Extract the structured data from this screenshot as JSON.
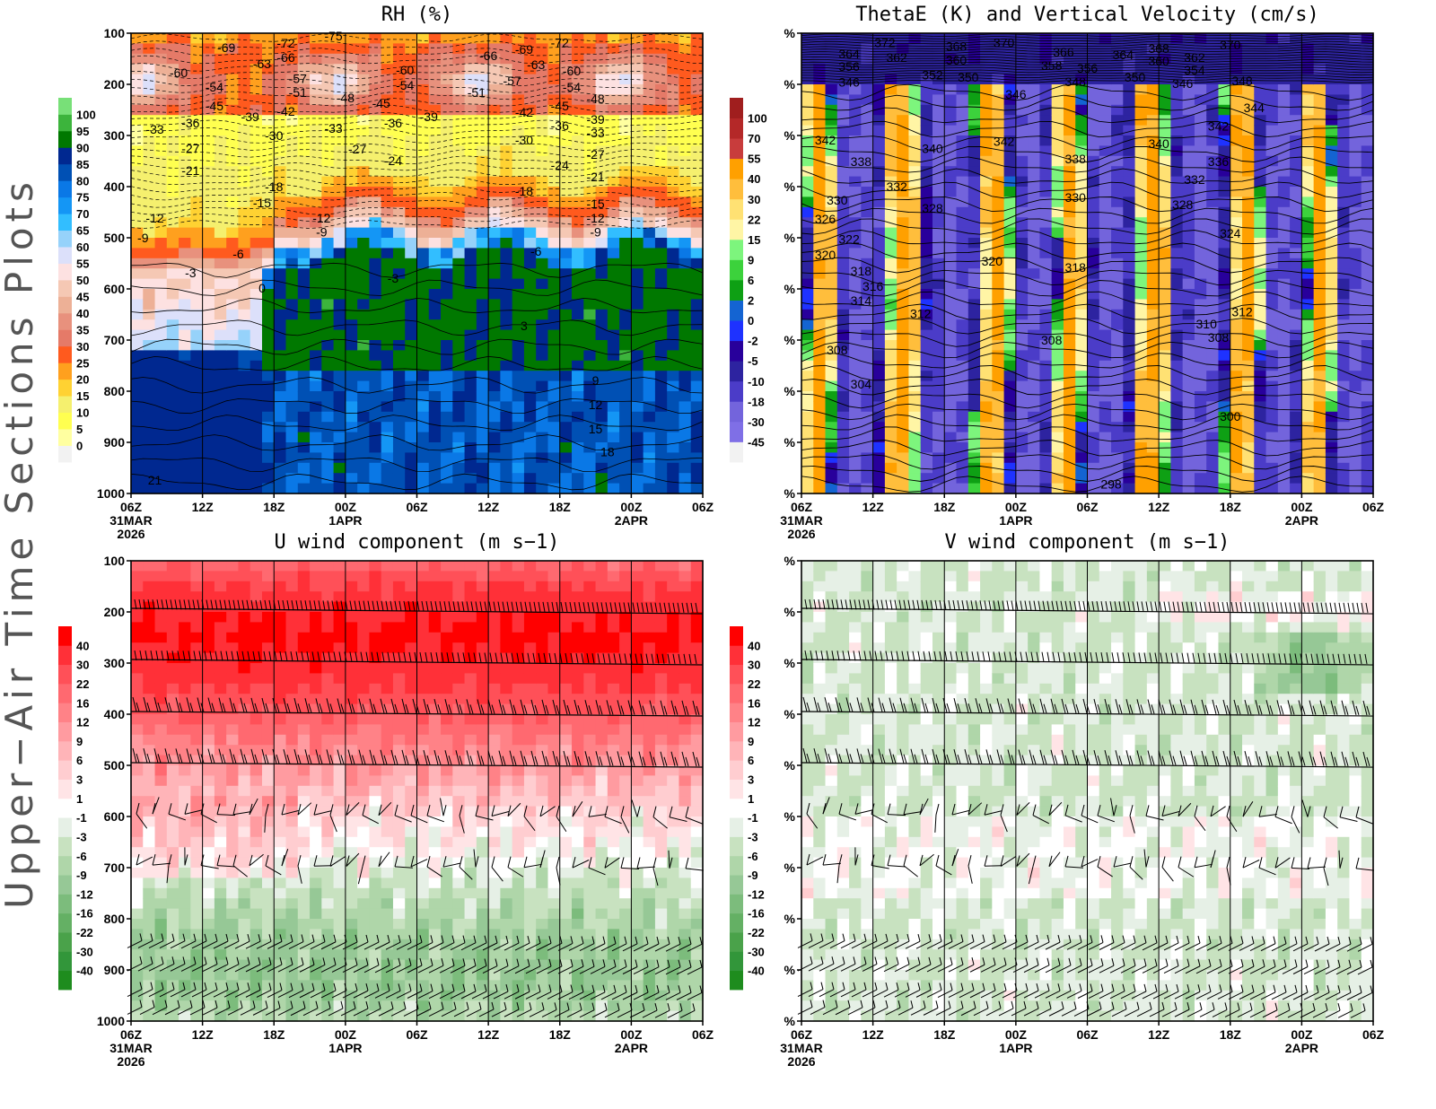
{
  "side_title": "Upper−Air Time Sections Plots",
  "chart_data": [
    {
      "id": "rh",
      "type": "heatmap",
      "title": "RH (%)",
      "xlabel": "",
      "ylabel": "",
      "ylim": [
        1000,
        100
      ],
      "xlim": [
        "2026-03-31T06:00Z",
        "2026-04-02T06:00Z"
      ],
      "x_ticks": [
        "06Z",
        "12Z",
        "18Z",
        "00Z",
        "06Z",
        "12Z",
        "18Z",
        "00Z",
        "06Z"
      ],
      "x_date_labels": [
        {
          "tick": 0,
          "lines": [
            "31MAR",
            "2026"
          ]
        },
        {
          "tick": 3,
          "lines": [
            "1APR"
          ]
        },
        {
          "tick": 7,
          "lines": [
            "2APR"
          ]
        }
      ],
      "y_tick_labels": [
        "100",
        "200",
        "300",
        "400",
        "500",
        "600",
        "700",
        "800",
        "900",
        "1000"
      ],
      "colorbar": {
        "levels": [
          "0",
          "5",
          "10",
          "15",
          "20",
          "25",
          "30",
          "35",
          "40",
          "45",
          "50",
          "55",
          "60",
          "65",
          "70",
          "75",
          "80",
          "85",
          "90",
          "95",
          "100"
        ],
        "colors": [
          "#f2f2f2",
          "#ffffa0",
          "#ffff50",
          "#f5f06e",
          "#ffd232",
          "#ffa01e",
          "#ff5a1e",
          "#e57a68",
          "#e8917d",
          "#edb096",
          "#f5c8b4",
          "#fde1e1",
          "#dce0fa",
          "#96d2fa",
          "#32beff",
          "#1496f5",
          "#0a78e6",
          "#0050b4",
          "#002890",
          "#007800",
          "#3cb43c",
          "#78e078"
        ]
      },
      "contour_labels": [
        {
          "v": "-69",
          "t": "2026-03-31T14:00Z",
          "p": 128
        },
        {
          "v": "-72",
          "t": "2026-03-31T19:00Z",
          "p": 119
        },
        {
          "v": "-75",
          "t": "2026-03-31T23:00Z",
          "p": 105
        },
        {
          "v": "-63",
          "t": "2026-03-31T17:00Z",
          "p": 160
        },
        {
          "v": "-66",
          "t": "2026-03-31T19:00Z",
          "p": 147
        },
        {
          "v": "-60",
          "t": "2026-03-31T10:00Z",
          "p": 177
        },
        {
          "v": "-54",
          "t": "2026-03-31T13:00Z",
          "p": 205
        },
        {
          "v": "-57",
          "t": "2026-03-31T20:00Z",
          "p": 189
        },
        {
          "v": "-51",
          "t": "2026-03-31T20:00Z",
          "p": 216
        },
        {
          "v": "-48",
          "t": "2026-04-01T00:00Z",
          "p": 226
        },
        {
          "v": "-45",
          "t": "2026-03-31T13:00Z",
          "p": 242
        },
        {
          "v": "-45",
          "t": "2026-04-01T03:00Z",
          "p": 237
        },
        {
          "v": "-42",
          "t": "2026-03-31T19:00Z",
          "p": 253
        },
        {
          "v": "-39",
          "t": "2026-03-31T16:00Z",
          "p": 263
        },
        {
          "v": "-36",
          "t": "2026-03-31T11:00Z",
          "p": 275
        },
        {
          "v": "-33",
          "t": "2026-03-31T08:00Z",
          "p": 288
        },
        {
          "v": "-33",
          "t": "2026-03-31T23:00Z",
          "p": 286
        },
        {
          "v": "-30",
          "t": "2026-03-31T18:00Z",
          "p": 300
        },
        {
          "v": "-27",
          "t": "2026-03-31T11:00Z",
          "p": 325
        },
        {
          "v": "-27",
          "t": "2026-04-01T01:00Z",
          "p": 326
        },
        {
          "v": "-24",
          "t": "2026-04-01T04:00Z",
          "p": 349
        },
        {
          "v": "-21",
          "t": "2026-03-31T11:00Z",
          "p": 368
        },
        {
          "v": "-18",
          "t": "2026-03-31T18:00Z",
          "p": 400
        },
        {
          "v": "-15",
          "t": "2026-03-31T17:00Z",
          "p": 432
        },
        {
          "v": "-12",
          "t": "2026-03-31T08:00Z",
          "p": 461
        },
        {
          "v": "-12",
          "t": "2026-03-31T22:00Z",
          "p": 461
        },
        {
          "v": "-9",
          "t": "2026-03-31T07:00Z",
          "p": 500
        },
        {
          "v": "-9",
          "t": "2026-03-31T22:00Z",
          "p": 489
        },
        {
          "v": "-6",
          "t": "2026-03-31T15:00Z",
          "p": 532
        },
        {
          "v": "-3",
          "t": "2026-03-31T11:00Z",
          "p": 568
        },
        {
          "v": "0",
          "t": "2026-03-31T17:00Z",
          "p": 598
        },
        {
          "v": "-60",
          "t": "2026-04-01T05:00Z",
          "p": 172
        },
        {
          "v": "-54",
          "t": "2026-04-01T05:00Z",
          "p": 202
        },
        {
          "v": "-36",
          "t": "2026-04-01T04:00Z",
          "p": 275
        },
        {
          "v": "-39",
          "t": "2026-04-01T07:00Z",
          "p": 263
        },
        {
          "v": "-66",
          "t": "2026-04-01T12:00Z",
          "p": 144
        },
        {
          "v": "-51",
          "t": "2026-04-01T11:00Z",
          "p": 216
        },
        {
          "v": "-57",
          "t": "2026-04-01T14:00Z",
          "p": 193
        },
        {
          "v": "-69",
          "t": "2026-04-01T15:00Z",
          "p": 132
        },
        {
          "v": "-72",
          "t": "2026-04-01T18:00Z",
          "p": 118
        },
        {
          "v": "-63",
          "t": "2026-04-01T16:00Z",
          "p": 161
        },
        {
          "v": "-60",
          "t": "2026-04-01T19:00Z",
          "p": 174
        },
        {
          "v": "-54",
          "t": "2026-04-01T19:00Z",
          "p": 205
        },
        {
          "v": "-48",
          "t": "2026-04-01T21:00Z",
          "p": 228
        },
        {
          "v": "-45",
          "t": "2026-04-01T18:00Z",
          "p": 242
        },
        {
          "v": "-42",
          "t": "2026-04-01T15:00Z",
          "p": 254
        },
        {
          "v": "-39",
          "t": "2026-04-01T21:00Z",
          "p": 268
        },
        {
          "v": "-36",
          "t": "2026-04-01T18:00Z",
          "p": 281
        },
        {
          "v": "-33",
          "t": "2026-04-01T21:00Z",
          "p": 295
        },
        {
          "v": "-30",
          "t": "2026-04-01T15:00Z",
          "p": 309
        },
        {
          "v": "-27",
          "t": "2026-04-01T21:00Z",
          "p": 337
        },
        {
          "v": "-24",
          "t": "2026-04-01T18:00Z",
          "p": 358
        },
        {
          "v": "-21",
          "t": "2026-04-01T21:00Z",
          "p": 381
        },
        {
          "v": "-18",
          "t": "2026-04-01T15:00Z",
          "p": 409
        },
        {
          "v": "-15",
          "t": "2026-04-01T21:00Z",
          "p": 433
        },
        {
          "v": "-12",
          "t": "2026-04-01T21:00Z",
          "p": 461
        },
        {
          "v": "-9",
          "t": "2026-04-01T21:00Z",
          "p": 489
        },
        {
          "v": "-6",
          "t": "2026-04-01T16:00Z",
          "p": 526
        },
        {
          "v": "-3",
          "t": "2026-04-01T04:00Z",
          "p": 579
        },
        {
          "v": "3",
          "t": "2026-04-01T15:00Z",
          "p": 672
        },
        {
          "v": "9",
          "t": "2026-04-01T21:00Z",
          "p": 779
        },
        {
          "v": "12",
          "t": "2026-04-01T21:00Z",
          "p": 826
        },
        {
          "v": "15",
          "t": "2026-04-01T21:00Z",
          "p": 874
        },
        {
          "v": "18",
          "t": "2026-04-01T22:00Z",
          "p": 918
        },
        {
          "v": "21",
          "t": "2026-03-31T08:00Z",
          "p": 974
        }
      ]
    },
    {
      "id": "thetae",
      "type": "heatmap",
      "title": "ThetaE (K) and Vertical Velocity (cm/s)",
      "xlabel": "",
      "ylabel": "",
      "ylim": [
        1000,
        100
      ],
      "xlim": [
        "2026-03-31T06:00Z",
        "2026-04-02T06:00Z"
      ],
      "x_ticks": [
        "06Z",
        "12Z",
        "18Z",
        "00Z",
        "06Z",
        "12Z",
        "18Z",
        "00Z",
        "06Z"
      ],
      "x_date_labels": [
        {
          "tick": 0,
          "lines": [
            "31MAR",
            "2026"
          ]
        },
        {
          "tick": 3,
          "lines": [
            "1APR"
          ]
        },
        {
          "tick": 7,
          "lines": [
            "2APR"
          ]
        }
      ],
      "y_tick_labels": [
        "%",
        "%",
        "%",
        "%",
        "%",
        "%",
        "%",
        "%",
        "%",
        "%"
      ],
      "colorbar": {
        "levels": [
          "-45",
          "-30",
          "-18",
          "-10",
          "-5",
          "-2",
          "0",
          "2",
          "6",
          "9",
          "15",
          "22",
          "30",
          "40",
          "55",
          "70",
          "100"
        ],
        "colors": [
          "#f2f2f2",
          "#7f6fe6",
          "#7364dc",
          "#4b3cc8",
          "#2d23a0",
          "#28009b",
          "#1e32ff",
          "#1464d2",
          "#0ea014",
          "#3cd23c",
          "#7df57d",
          "#fff5a5",
          "#ffe173",
          "#ffbe3c",
          "#ffa000",
          "#c83c3c",
          "#b42828",
          "#a01e1e"
        ]
      },
      "contour_labels": [
        {
          "v": "372",
          "t": "2026-03-31T13:00Z",
          "p": 118
        },
        {
          "v": "364",
          "t": "2026-03-31T10:00Z",
          "p": 140
        },
        {
          "v": "356",
          "t": "2026-03-31T10:00Z",
          "p": 165
        },
        {
          "v": "362",
          "t": "2026-03-31T14:00Z",
          "p": 147
        },
        {
          "v": "368",
          "t": "2026-03-31T19:00Z",
          "p": 125
        },
        {
          "v": "370",
          "t": "2026-03-31T23:00Z",
          "p": 118
        },
        {
          "v": "360",
          "t": "2026-03-31T19:00Z",
          "p": 153
        },
        {
          "v": "366",
          "t": "2026-04-01T04:00Z",
          "p": 137
        },
        {
          "v": "358",
          "t": "2026-04-01T03:00Z",
          "p": 163
        },
        {
          "v": "356",
          "t": "2026-04-01T06:00Z",
          "p": 168
        },
        {
          "v": "352",
          "t": "2026-03-31T17:00Z",
          "p": 182
        },
        {
          "v": "350",
          "t": "2026-03-31T20:00Z",
          "p": 186
        },
        {
          "v": "348",
          "t": "2026-04-01T05:00Z",
          "p": 195
        },
        {
          "v": "364",
          "t": "2026-04-01T09:00Z",
          "p": 142
        },
        {
          "v": "368",
          "t": "2026-04-01T12:00Z",
          "p": 130
        },
        {
          "v": "360",
          "t": "2026-04-01T12:00Z",
          "p": 154
        },
        {
          "v": "362",
          "t": "2026-04-01T15:00Z",
          "p": 147
        },
        {
          "v": "370",
          "t": "2026-04-01T18:00Z",
          "p": 123
        },
        {
          "v": "354",
          "t": "2026-04-01T15:00Z",
          "p": 172
        },
        {
          "v": "350",
          "t": "2026-04-01T10:00Z",
          "p": 186
        },
        {
          "v": "346",
          "t": "2026-04-01T14:00Z",
          "p": 198
        },
        {
          "v": "348",
          "t": "2026-04-01T19:00Z",
          "p": 193
        },
        {
          "v": "346",
          "t": "2026-03-31T10:00Z",
          "p": 196
        },
        {
          "v": "346",
          "t": "2026-04-01T00:00Z",
          "p": 219
        },
        {
          "v": "344",
          "t": "2026-04-01T20:00Z",
          "p": 246
        },
        {
          "v": "342",
          "t": "2026-03-31T08:00Z",
          "p": 309
        },
        {
          "v": "342",
          "t": "2026-03-31T23:00Z",
          "p": 311
        },
        {
          "v": "342",
          "t": "2026-04-01T17:00Z",
          "p": 282
        },
        {
          "v": "340",
          "t": "2026-03-31T17:00Z",
          "p": 325
        },
        {
          "v": "340",
          "t": "2026-04-01T12:00Z",
          "p": 316
        },
        {
          "v": "338",
          "t": "2026-03-31T11:00Z",
          "p": 351
        },
        {
          "v": "338",
          "t": "2026-04-01T05:00Z",
          "p": 346
        },
        {
          "v": "336",
          "t": "2026-04-01T17:00Z",
          "p": 351
        },
        {
          "v": "332",
          "t": "2026-03-31T14:00Z",
          "p": 400
        },
        {
          "v": "332",
          "t": "2026-04-01T15:00Z",
          "p": 386
        },
        {
          "v": "330",
          "t": "2026-03-31T09:00Z",
          "p": 426
        },
        {
          "v": "330",
          "t": "2026-04-01T05:00Z",
          "p": 421
        },
        {
          "v": "328",
          "t": "2026-03-31T17:00Z",
          "p": 442
        },
        {
          "v": "328",
          "t": "2026-04-01T14:00Z",
          "p": 435
        },
        {
          "v": "326",
          "t": "2026-03-31T08:00Z",
          "p": 463
        },
        {
          "v": "324",
          "t": "2026-04-01T18:00Z",
          "p": 491
        },
        {
          "v": "322",
          "t": "2026-03-31T10:00Z",
          "p": 503
        },
        {
          "v": "320",
          "t": "2026-03-31T08:00Z",
          "p": 533
        },
        {
          "v": "320",
          "t": "2026-03-31T22:00Z",
          "p": 546
        },
        {
          "v": "318",
          "t": "2026-03-31T11:00Z",
          "p": 565
        },
        {
          "v": "318",
          "t": "2026-04-01T05:00Z",
          "p": 558
        },
        {
          "v": "316",
          "t": "2026-03-31T12:00Z",
          "p": 595
        },
        {
          "v": "314",
          "t": "2026-03-31T11:00Z",
          "p": 623
        },
        {
          "v": "312",
          "t": "2026-03-31T16:00Z",
          "p": 648
        },
        {
          "v": "312",
          "t": "2026-04-01T19:00Z",
          "p": 645
        },
        {
          "v": "310",
          "t": "2026-04-01T16:00Z",
          "p": 668
        },
        {
          "v": "308",
          "t": "2026-03-31T09:00Z",
          "p": 719
        },
        {
          "v": "308",
          "t": "2026-04-01T03:00Z",
          "p": 700
        },
        {
          "v": "308",
          "t": "2026-04-01T17:00Z",
          "p": 695
        },
        {
          "v": "304",
          "t": "2026-03-31T11:00Z",
          "p": 786
        },
        {
          "v": "300",
          "t": "2026-04-01T18:00Z",
          "p": 849
        },
        {
          "v": "298",
          "t": "2026-04-01T08:00Z",
          "p": 982
        }
      ]
    },
    {
      "id": "uwind",
      "type": "heatmap",
      "title": "U wind component (m s−1)",
      "xlabel": "",
      "ylabel": "",
      "ylim": [
        1000,
        100
      ],
      "xlim": [
        "2026-03-31T06:00Z",
        "2026-04-02T06:00Z"
      ],
      "x_ticks": [
        "06Z",
        "12Z",
        "18Z",
        "00Z",
        "06Z",
        "12Z",
        "18Z",
        "00Z",
        "06Z"
      ],
      "x_date_labels": [
        {
          "tick": 0,
          "lines": [
            "31MAR",
            "2026"
          ]
        },
        {
          "tick": 3,
          "lines": [
            "1APR"
          ]
        },
        {
          "tick": 7,
          "lines": [
            "2APR"
          ]
        }
      ],
      "y_tick_labels": [
        "100",
        "200",
        "300",
        "400",
        "500",
        "600",
        "700",
        "800",
        "900",
        "1000"
      ],
      "wind_barbs": true,
      "colorbar": {
        "levels": [
          "-40",
          "-30",
          "-22",
          "-16",
          "-12",
          "-9",
          "-6",
          "-3",
          "-1",
          "1",
          "3",
          "6",
          "9",
          "12",
          "16",
          "22",
          "30",
          "40"
        ],
        "colors": [
          "#1e8c1e",
          "#32963a",
          "#4aa24a",
          "#64b064",
          "#7cbc7c",
          "#96c896",
          "#afd6a9",
          "#c8e2c0",
          "#e6f0e6",
          "#ffffff",
          "#ffe4e6",
          "#ffcdd0",
          "#ffb4b8",
          "#ff9ba0",
          "#ff8287",
          "#ff6970",
          "#ff5058",
          "#ff3038",
          "#ff0000"
        ]
      },
      "contour_labels": []
    },
    {
      "id": "vwind",
      "type": "heatmap",
      "title": "V wind component (m s−1)",
      "xlabel": "",
      "ylabel": "",
      "ylim": [
        1000,
        100
      ],
      "xlim": [
        "2026-03-31T06:00Z",
        "2026-04-02T06:00Z"
      ],
      "x_ticks": [
        "06Z",
        "12Z",
        "18Z",
        "00Z",
        "06Z",
        "12Z",
        "18Z",
        "00Z",
        "06Z"
      ],
      "x_date_labels": [
        {
          "tick": 0,
          "lines": [
            "31MAR",
            "2026"
          ]
        },
        {
          "tick": 3,
          "lines": [
            "1APR"
          ]
        },
        {
          "tick": 7,
          "lines": [
            "2APR"
          ]
        }
      ],
      "y_tick_labels": [
        "%",
        "%",
        "%",
        "%",
        "%",
        "%",
        "%",
        "%",
        "%",
        "%"
      ],
      "wind_barbs": true,
      "colorbar": {
        "levels": [
          "-40",
          "-30",
          "-22",
          "-16",
          "-12",
          "-9",
          "-6",
          "-3",
          "-1",
          "1",
          "3",
          "6",
          "9",
          "12",
          "16",
          "22",
          "30",
          "40"
        ],
        "colors": [
          "#1e8c1e",
          "#32963a",
          "#4aa24a",
          "#64b064",
          "#7cbc7c",
          "#96c896",
          "#afd6a9",
          "#c8e2c0",
          "#e6f0e6",
          "#ffffff",
          "#ffe4e6",
          "#ffcdd0",
          "#ffb4b8",
          "#ff9ba0",
          "#ff8287",
          "#ff6970",
          "#ff5058",
          "#ff3038",
          "#ff0000"
        ]
      },
      "contour_labels": []
    }
  ]
}
